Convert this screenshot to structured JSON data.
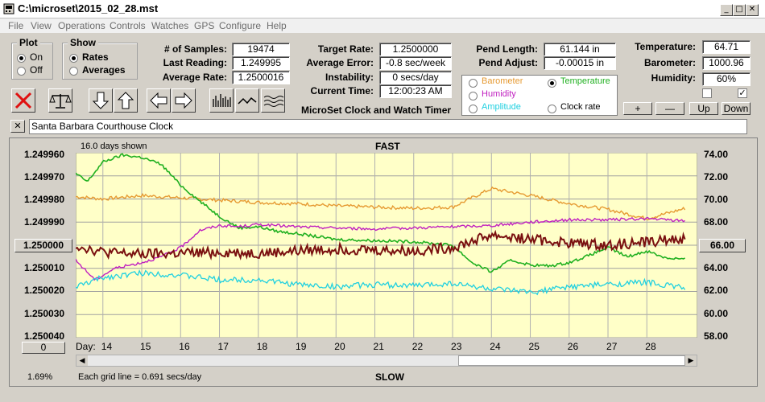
{
  "window": {
    "title": "C:\\microset\\2015_02_28.mst"
  },
  "menu": [
    "File",
    "View",
    "Operations",
    "Controls",
    "Watches",
    "GPS",
    "Configure",
    "Help"
  ],
  "plot_group": {
    "label": "Plot",
    "options": [
      {
        "label": "On",
        "selected": true
      },
      {
        "label": "Off",
        "selected": false
      }
    ]
  },
  "show_group": {
    "label": "Show",
    "options": [
      {
        "label": "Rates",
        "selected": true
      },
      {
        "label": "Averages",
        "selected": false
      }
    ]
  },
  "stats": [
    {
      "label": "# of Samples:",
      "value": "19474"
    },
    {
      "label": "Last Reading:",
      "value": "1.249995"
    },
    {
      "label": "Average Rate:",
      "value": "1.2500016"
    }
  ],
  "rates": [
    {
      "label": "Target Rate:",
      "value": "1.2500000"
    },
    {
      "label": "Average Error:",
      "value": "-0.8 sec/week"
    },
    {
      "label": "Instability:",
      "value": "0 secs/day"
    },
    {
      "label": "Current Time:",
      "value": "12:00:23 AM"
    }
  ],
  "app_name": "MicroSet Clock and Watch Timer",
  "pendulum": [
    {
      "label": "Pend Length:",
      "value": "61.144 in"
    },
    {
      "label": "Pend Adjust:",
      "value": "-0.00015 in"
    }
  ],
  "sensor_select": [
    {
      "label": "Barometer",
      "color": "#e69a32",
      "selected": false
    },
    {
      "label": "Temperature",
      "color": "#20b020",
      "selected": true
    },
    {
      "label": "Humidity",
      "color": "#c020c0",
      "selected": false
    },
    {
      "label": "Clock rate",
      "color": "#000000",
      "selected": false
    },
    {
      "label": "Amplitude",
      "color": "#20d0e0",
      "selected": false
    }
  ],
  "environment": [
    {
      "label": "Temperature:",
      "value": "64.71"
    },
    {
      "label": "Barometer:",
      "value": "1000.96"
    },
    {
      "label": "Humidity:",
      "value": "60%"
    }
  ],
  "scale_buttons": [
    "+",
    "—",
    "Up",
    "Down"
  ],
  "clock_name": "Santa Barbara Courthouse Clock",
  "close_symbol": "✕",
  "chart_header": {
    "days_shown": "16.0 days shown",
    "fast": "FAST",
    "slow": "SLOW",
    "grid_note": "Each grid line = 0.691 secs/day",
    "percent": "1.69%",
    "left_box": "1.250000",
    "right_box": "66.00",
    "bottom_box": "0",
    "day_label": "Day:"
  },
  "chart_data": {
    "type": "line",
    "x_label": "Day",
    "x_ticks": [
      14,
      15,
      16,
      17,
      18,
      19,
      20,
      21,
      22,
      23,
      24,
      25,
      26,
      27,
      28
    ],
    "xlim": [
      13.3,
      29.3
    ],
    "left_axis": {
      "ticks": [
        "1.249960",
        "1.249970",
        "1.249980",
        "1.249990",
        "1.250000",
        "1.250010",
        "1.250020",
        "1.250030",
        "1.250040"
      ],
      "range": [
        1.24996,
        1.25004
      ],
      "inverted": true
    },
    "right_axis": {
      "ticks": [
        "74.00",
        "72.00",
        "70.00",
        "68.00",
        "66.00",
        "64.00",
        "62.00",
        "60.00",
        "58.00"
      ],
      "range": [
        58,
        74
      ]
    },
    "series": [
      {
        "key": "barometer",
        "color": "#e69a32",
        "axis": "right",
        "x": [
          13.3,
          14,
          15,
          16,
          17,
          18,
          19,
          20,
          21,
          22,
          23,
          24,
          25,
          26,
          27,
          28,
          29
        ],
        "y": [
          70.2,
          70.0,
          70.3,
          70.1,
          69.9,
          69.7,
          69.6,
          69.4,
          69.3,
          69.2,
          69.3,
          70.9,
          70.3,
          69.6,
          69.1,
          68.3,
          69.2
        ]
      },
      {
        "key": "temperature",
        "color": "#20b020",
        "axis": "right",
        "x": [
          13.3,
          13.6,
          14,
          14.5,
          15,
          15.5,
          16,
          16.5,
          17,
          17.5,
          18,
          18.5,
          19,
          20,
          21,
          22,
          23,
          23.5,
          24,
          24.5,
          25,
          25.5,
          26,
          26.5,
          27,
          27.5,
          28,
          28.5,
          29
        ],
        "y": [
          72.2,
          71.5,
          73.2,
          73.8,
          73.6,
          73.0,
          71.2,
          69.8,
          68.5,
          67.5,
          67.6,
          67.2,
          67.0,
          66.5,
          66.4,
          66.3,
          66.0,
          64.5,
          63.7,
          64.7,
          64.3,
          64.2,
          64.5,
          65.1,
          65.8,
          65.0,
          65.5,
          64.9,
          64.8
        ]
      },
      {
        "key": "humidity",
        "color": "#c020c0",
        "axis": "right",
        "x": [
          13.3,
          13.8,
          14.3,
          15,
          15.5,
          16,
          16.5,
          17,
          17.5,
          18,
          19,
          20,
          21,
          22,
          23,
          24,
          25,
          26,
          27,
          28,
          29
        ],
        "y": [
          64.7,
          63.0,
          64.0,
          64.5,
          65.0,
          65.8,
          67.3,
          67.7,
          67.6,
          67.8,
          67.6,
          67.5,
          67.4,
          67.5,
          67.6,
          67.7,
          68.0,
          68.2,
          68.2,
          68.3,
          68.1
        ]
      },
      {
        "key": "clock_rate",
        "color": "#7a1010",
        "axis": "right",
        "x": [
          13.3,
          14,
          15,
          16,
          17,
          18,
          19,
          20,
          21,
          22,
          23,
          24,
          25,
          26,
          27,
          28,
          29
        ],
        "y": [
          66.0,
          65.4,
          65.2,
          65.3,
          65.4,
          65.3,
          65.5,
          65.7,
          65.6,
          65.5,
          65.8,
          66.9,
          66.5,
          66.2,
          66.0,
          66.3,
          66.6
        ]
      },
      {
        "key": "amplitude",
        "color": "#20d0e0",
        "axis": "right",
        "x": [
          13.3,
          14,
          15,
          16,
          17,
          18,
          19,
          20,
          21,
          22,
          23,
          24,
          25,
          26,
          27,
          28,
          29
        ],
        "y": [
          62.4,
          63.2,
          63.6,
          63.4,
          63.0,
          63.0,
          62.6,
          62.4,
          62.6,
          62.5,
          62.7,
          62.2,
          61.9,
          62.4,
          62.6,
          62.8,
          62.3
        ]
      }
    ]
  }
}
